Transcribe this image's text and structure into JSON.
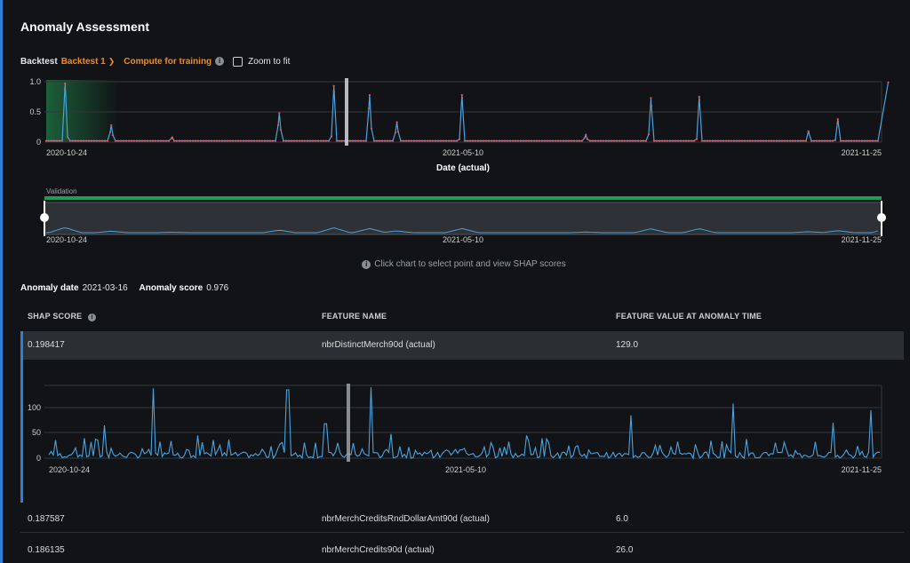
{
  "title": "Anomaly Assessment",
  "controls": {
    "backtest_label": "Backtest",
    "backtest_value": "Backtest 1",
    "compute_label": "Compute for training",
    "zoom_label": "Zoom to fit"
  },
  "main_chart": {
    "y_ticks": [
      "1.0",
      "0.5",
      "0"
    ],
    "x_start": "2020-10-24",
    "x_mid": "2021-05-10",
    "x_end": "2021-11-25",
    "x_axis_title": "Date (actual)"
  },
  "range_selector": {
    "validation_label": "Validation",
    "x_start": "2020-10-24",
    "x_mid": "2021-05-10",
    "x_end": "2021-11-25"
  },
  "hint_text": "Click chart to select point and view SHAP scores",
  "anomaly": {
    "date_label": "Anomaly date",
    "date_value": "2021-03-16",
    "score_label": "Anomaly score",
    "score_value": "0.976"
  },
  "table": {
    "headers": [
      "SHAP SCORE",
      "FEATURE NAME",
      "FEATURE VALUE AT ANOMALY TIME"
    ],
    "rows": [
      {
        "shap": "0.198417",
        "feature": "nbrDistinctMerch90d (actual)",
        "value": "129.0"
      },
      {
        "shap": "0.187587",
        "feature": "nbrMerchCreditsRndDollarAmt90d (actual)",
        "value": "6.0"
      },
      {
        "shap": "0.186135",
        "feature": "nbrMerchCredits90d (actual)",
        "value": "26.0"
      }
    ]
  },
  "feature_chart": {
    "y_ticks": [
      "100",
      "50",
      "0"
    ],
    "x_start": "2020-10-24",
    "x_mid": "2021-05-10",
    "x_end": "2021-11-25"
  },
  "colors": {
    "accent": "#2f7fd8",
    "orange": "#f08a24",
    "series": "#4aa3df",
    "points": "#e05a5a",
    "validation": "#1f9d55",
    "background": "#111316"
  },
  "chart_data": [
    {
      "type": "line",
      "title": "",
      "xlabel": "Date (actual)",
      "ylabel": "",
      "ylim": [
        0,
        1.0
      ],
      "x_range": [
        "2020-10-24",
        "2021-11-25"
      ],
      "selected_date": "2021-03-16",
      "series": [
        {
          "name": "",
          "peaks": [
            {
              "date": "2020-11-02",
              "y": 0.97
            },
            {
              "date": "2020-11-24",
              "y": 0.28
            },
            {
              "date": "2020-12-23",
              "y": 0.08
            },
            {
              "date": "2021-02-12",
              "y": 0.48
            },
            {
              "date": "2021-03-10",
              "y": 0.93
            },
            {
              "date": "2021-03-27",
              "y": 0.78
            },
            {
              "date": "2021-04-09",
              "y": 0.33
            },
            {
              "date": "2021-05-10",
              "y": 0.78
            },
            {
              "date": "2021-07-08",
              "y": 0.12
            },
            {
              "date": "2021-08-08",
              "y": 0.73
            },
            {
              "date": "2021-08-31",
              "y": 0.75
            },
            {
              "date": "2021-10-22",
              "y": 0.18
            },
            {
              "date": "2021-11-05",
              "y": 0.38
            },
            {
              "date": "2021-11-29",
              "y": 0.99
            }
          ]
        }
      ]
    },
    {
      "type": "line",
      "title": "",
      "xlabel": "",
      "ylabel": "",
      "ylim": [
        0,
        150
      ],
      "x_range": [
        "2020-10-24",
        "2021-11-25"
      ],
      "selected_date": "2021-03-16",
      "series": [
        {
          "name": "",
          "peaks": [
            {
              "date": "2020-11-21",
              "y": 65
            },
            {
              "date": "2020-12-14",
              "y": 138
            },
            {
              "date": "2021-01-04",
              "y": 45
            },
            {
              "date": "2021-02-16",
              "y": 135
            },
            {
              "date": "2021-03-06",
              "y": 68
            },
            {
              "date": "2021-03-28",
              "y": 140
            },
            {
              "date": "2021-04-06",
              "y": 48
            },
            {
              "date": "2021-06-10",
              "y": 45
            },
            {
              "date": "2021-07-30",
              "y": 85
            },
            {
              "date": "2021-09-16",
              "y": 108
            },
            {
              "date": "2021-11-03",
              "y": 70
            },
            {
              "date": "2021-11-21",
              "y": 95
            }
          ]
        }
      ]
    }
  ]
}
